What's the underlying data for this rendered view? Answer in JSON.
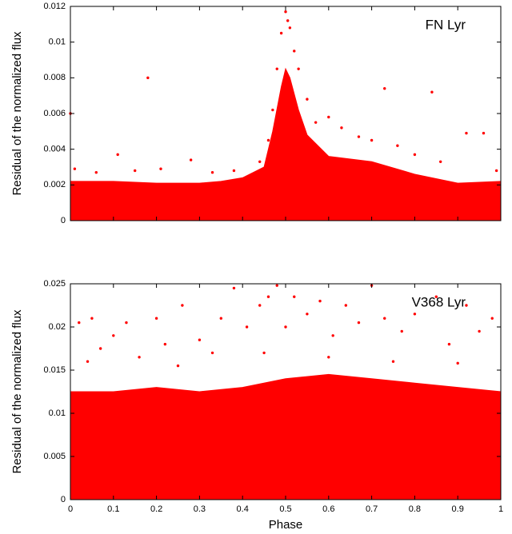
{
  "chart_data": [
    {
      "type": "scatter",
      "annotation": "FN Lyr",
      "ylabel": "Residual of the normalized flux",
      "xlim": [
        0,
        1
      ],
      "ylim": [
        0,
        0.012
      ],
      "xticks": [
        0,
        0.1,
        0.2,
        0.3,
        0.4,
        0.5,
        0.6,
        0.7,
        0.8,
        0.9,
        1
      ],
      "xtick_labels": false,
      "yticks": [
        0,
        0.002,
        0.004,
        0.006,
        0.008,
        0.01,
        0.012
      ],
      "series": [
        {
          "type": "area",
          "color": "#ff0000",
          "x": [
            0,
            0.1,
            0.2,
            0.3,
            0.35,
            0.4,
            0.45,
            0.47,
            0.49,
            0.5,
            0.51,
            0.53,
            0.55,
            0.6,
            0.7,
            0.8,
            0.9,
            1
          ],
          "values": [
            0.0022,
            0.0022,
            0.0021,
            0.0021,
            0.0022,
            0.0024,
            0.003,
            0.005,
            0.0075,
            0.0085,
            0.008,
            0.0062,
            0.0048,
            0.0036,
            0.0033,
            0.0026,
            0.0021,
            0.0022
          ]
        },
        {
          "type": "scatter",
          "color": "#ff0000",
          "x": [
            0,
            0.01,
            0.06,
            0.11,
            0.15,
            0.18,
            0.21,
            0.28,
            0.33,
            0.38,
            0.44,
            0.46,
            0.47,
            0.48,
            0.49,
            0.5,
            0.505,
            0.51,
            0.52,
            0.53,
            0.55,
            0.57,
            0.6,
            0.63,
            0.67,
            0.7,
            0.73,
            0.76,
            0.8,
            0.84,
            0.86,
            0.92,
            0.96,
            0.99
          ],
          "values": [
            0.006,
            0.0029,
            0.0027,
            0.0037,
            0.0028,
            0.008,
            0.0029,
            0.0034,
            0.0027,
            0.0028,
            0.0033,
            0.0045,
            0.0062,
            0.0085,
            0.0105,
            0.0117,
            0.0112,
            0.0108,
            0.0095,
            0.0085,
            0.0068,
            0.0055,
            0.0058,
            0.0052,
            0.0047,
            0.0045,
            0.0074,
            0.0042,
            0.0037,
            0.0072,
            0.0033,
            0.0049,
            0.0049,
            0.0028
          ]
        }
      ]
    },
    {
      "type": "scatter",
      "annotation": "V368 Lyr",
      "ylabel": "Residual of the normalized flux",
      "xlabel": "Phase",
      "xlim": [
        0,
        1
      ],
      "ylim": [
        0,
        0.025
      ],
      "xticks": [
        0,
        0.1,
        0.2,
        0.3,
        0.4,
        0.5,
        0.6,
        0.7,
        0.8,
        0.9,
        1
      ],
      "xtick_labels": true,
      "yticks": [
        0,
        0.005,
        0.01,
        0.015,
        0.02,
        0.025
      ],
      "series": [
        {
          "type": "area",
          "color": "#ff0000",
          "x": [
            0,
            0.1,
            0.2,
            0.3,
            0.4,
            0.5,
            0.6,
            0.7,
            0.8,
            0.9,
            1
          ],
          "values": [
            0.0125,
            0.0125,
            0.013,
            0.0125,
            0.013,
            0.014,
            0.0145,
            0.014,
            0.0135,
            0.013,
            0.0125
          ]
        },
        {
          "type": "scatter",
          "color": "#ff0000",
          "x": [
            0.02,
            0.04,
            0.05,
            0.07,
            0.1,
            0.13,
            0.16,
            0.2,
            0.22,
            0.25,
            0.26,
            0.3,
            0.33,
            0.35,
            0.38,
            0.41,
            0.44,
            0.45,
            0.46,
            0.48,
            0.5,
            0.52,
            0.55,
            0.58,
            0.6,
            0.61,
            0.64,
            0.67,
            0.7,
            0.73,
            0.75,
            0.77,
            0.8,
            0.85,
            0.88,
            0.9,
            0.92,
            0.95,
            0.98
          ],
          "values": [
            0.0205,
            0.016,
            0.021,
            0.0175,
            0.019,
            0.0205,
            0.0165,
            0.021,
            0.018,
            0.0155,
            0.0225,
            0.0185,
            0.017,
            0.021,
            0.0245,
            0.02,
            0.0225,
            0.017,
            0.0235,
            0.0248,
            0.02,
            0.0235,
            0.0215,
            0.023,
            0.0165,
            0.019,
            0.0225,
            0.0205,
            0.0248,
            0.021,
            0.016,
            0.0195,
            0.0215,
            0.0235,
            0.018,
            0.0158,
            0.0225,
            0.0195,
            0.021
          ]
        }
      ]
    }
  ]
}
